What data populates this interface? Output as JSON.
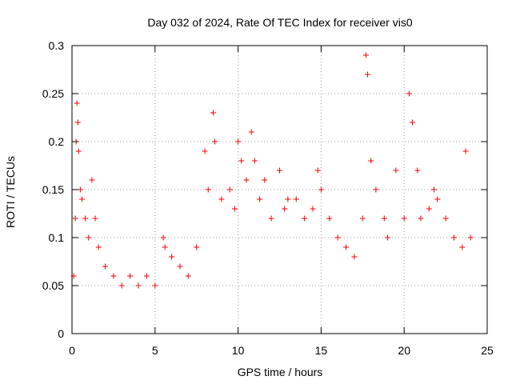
{
  "chart_data": {
    "type": "scatter",
    "title": "Day 032 of 2024, Rate Of TEC Index for receiver vis0",
    "xlabel": "GPS time / hours",
    "ylabel": "ROTI / TECUs",
    "xlim": [
      0,
      25
    ],
    "ylim": [
      0,
      0.3
    ],
    "x_ticks": [
      0,
      5,
      10,
      15,
      20,
      25
    ],
    "x_tick_labels": [
      "0",
      "5",
      "10",
      "15",
      "20",
      "25"
    ],
    "y_ticks": [
      0,
      0.05,
      0.1,
      0.15,
      0.2,
      0.25,
      0.3
    ],
    "y_tick_labels": [
      "0",
      "0.05",
      "0.1",
      "0.15",
      "0.2",
      "0.25",
      "0.3"
    ],
    "grid": true,
    "marker": "+",
    "series_color": "#ff0000",
    "series": [
      {
        "name": "ROTI",
        "x": [
          0.1,
          0.2,
          0.25,
          0.3,
          0.35,
          0.4,
          0.5,
          0.6,
          0.8,
          1.0,
          1.2,
          1.4,
          1.6,
          2.0,
          2.5,
          3.0,
          3.5,
          4.0,
          4.5,
          5.0,
          5.5,
          5.6,
          6.0,
          6.5,
          7.0,
          7.5,
          8.0,
          8.2,
          8.5,
          8.6,
          9.0,
          9.5,
          9.8,
          10.0,
          10.2,
          10.5,
          10.8,
          11.0,
          11.3,
          11.6,
          12.0,
          12.5,
          12.8,
          13.0,
          13.5,
          14.0,
          14.5,
          14.8,
          15.0,
          15.5,
          16.0,
          16.5,
          17.0,
          17.5,
          17.7,
          17.8,
          18.0,
          18.3,
          18.8,
          19.0,
          19.5,
          20.0,
          20.3,
          20.5,
          20.8,
          21.0,
          21.5,
          21.8,
          22.0,
          22.5,
          23.0,
          23.5,
          23.7,
          24.0
        ],
        "y": [
          0.06,
          0.12,
          0.2,
          0.24,
          0.22,
          0.19,
          0.15,
          0.14,
          0.12,
          0.1,
          0.16,
          0.12,
          0.09,
          0.07,
          0.06,
          0.05,
          0.06,
          0.05,
          0.06,
          0.05,
          0.1,
          0.09,
          0.08,
          0.07,
          0.06,
          0.09,
          0.19,
          0.15,
          0.23,
          0.2,
          0.14,
          0.15,
          0.13,
          0.2,
          0.18,
          0.16,
          0.21,
          0.18,
          0.14,
          0.16,
          0.12,
          0.17,
          0.13,
          0.14,
          0.14,
          0.12,
          0.13,
          0.17,
          0.15,
          0.12,
          0.1,
          0.09,
          0.08,
          0.12,
          0.29,
          0.27,
          0.18,
          0.15,
          0.12,
          0.1,
          0.17,
          0.12,
          0.25,
          0.22,
          0.17,
          0.12,
          0.13,
          0.15,
          0.14,
          0.12,
          0.1,
          0.09,
          0.19,
          0.1
        ]
      }
    ]
  }
}
